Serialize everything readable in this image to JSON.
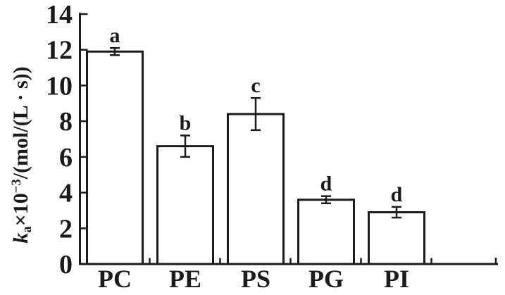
{
  "figure": {
    "background": "#ffffff",
    "ink": "#1b1b1b"
  },
  "chart_data": {
    "type": "bar",
    "title": "",
    "categories": [
      "PC",
      "PE",
      "PS",
      "PG",
      "PI"
    ],
    "values": [
      11.9,
      6.6,
      8.4,
      3.6,
      2.9
    ],
    "error_bars": [
      0.2,
      0.6,
      0.9,
      0.2,
      0.3
    ],
    "significance_letters": [
      "a",
      "b",
      "c",
      "d",
      "d"
    ],
    "ylabel": {
      "variable": "k",
      "subscript": "a",
      "multiplier": "×10",
      "exponent": "−3",
      "units": "/(mol/(L · s))"
    },
    "ylabel_text": "ka×10−3/(mol/(L · s))",
    "xlabel": "",
    "yticks": [
      0,
      2,
      4,
      6,
      8,
      10,
      12,
      14
    ],
    "ylim": [
      0,
      14
    ],
    "grid": false,
    "legend": null,
    "bar_fill": "#ffffff",
    "bar_border": "#1b1b1b"
  }
}
